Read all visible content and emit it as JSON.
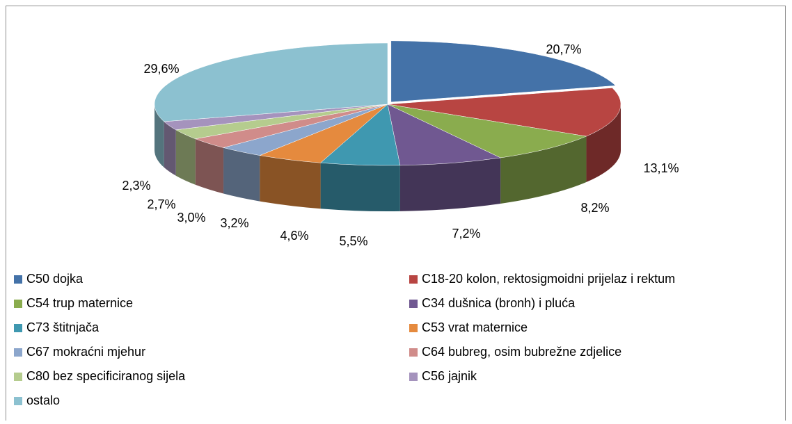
{
  "chart_data": {
    "type": "pie3d",
    "categories": [
      "C50 dojka",
      "C18-20 kolon, rektosigmoidni prijelaz i rektum",
      "C54 trup maternice",
      "C34 dušnica (bronh) i pluća",
      "C73 štitnjača",
      "C53 vrat maternice",
      "C67 mokraćni mjehur",
      "C64 bubreg, osim bubrežne zdjelice",
      "C80 bez specificiranog sijela",
      "C56 jajnik",
      "ostalo"
    ],
    "values": [
      20.7,
      13.1,
      8.2,
      7.2,
      5.5,
      4.6,
      3.2,
      3.0,
      2.7,
      2.3,
      29.6
    ],
    "value_labels": [
      "20,7%",
      "13,1%",
      "8,2%",
      "7,2%",
      "5,5%",
      "4,6%",
      "3,2%",
      "3,0%",
      "2,7%",
      "2,3%",
      "29,6%"
    ],
    "colors": [
      "#4472a8",
      "#b84542",
      "#8aac4e",
      "#705891",
      "#3f98b0",
      "#e58a3e",
      "#8ca6cc",
      "#d08c8a",
      "#b5cc8e",
      "#a593bd",
      "#8cc1d0"
    ],
    "legend": "bottom"
  }
}
